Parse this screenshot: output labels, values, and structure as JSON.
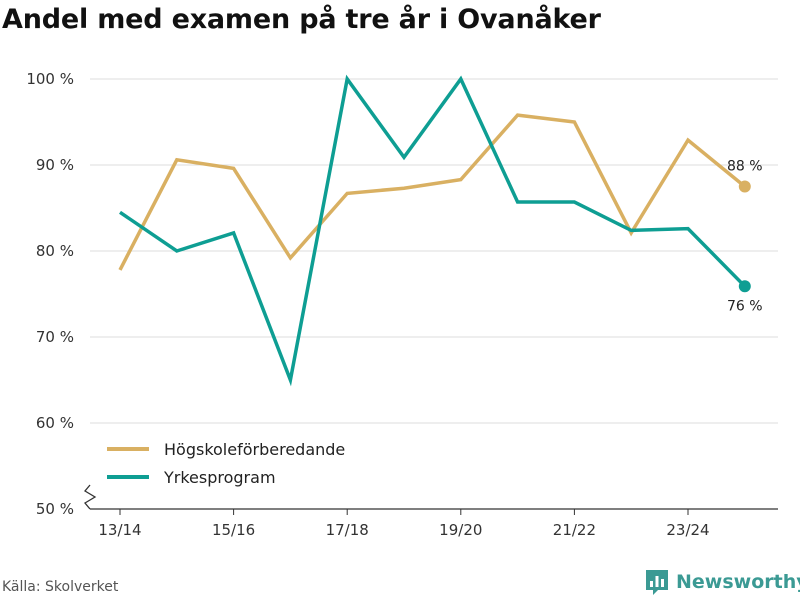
{
  "header": {
    "title": "Andel med examen på tre år i Ovanåker"
  },
  "footer": {
    "source": "Källa: Skolverket",
    "brand": "Newsworthy"
  },
  "colors": {
    "hogskole": "#d9b062",
    "yrkes": "#0e9e93",
    "grid": "#dddddd",
    "axis": "#333333"
  },
  "chart_data": {
    "type": "line",
    "x": [
      "13/14",
      "14/15",
      "15/16",
      "16/17",
      "17/18",
      "18/19",
      "19/20",
      "20/21",
      "21/22",
      "22/23",
      "23/24",
      "24/25"
    ],
    "x_tick_labels": [
      "13/14",
      "15/16",
      "17/18",
      "19/20",
      "21/22",
      "23/24"
    ],
    "y_ticks": [
      50,
      60,
      70,
      80,
      90,
      100
    ],
    "y_tick_labels": [
      "50 %",
      "60 %",
      "70 %",
      "80 %",
      "90 %",
      "100 %"
    ],
    "ylim": [
      50,
      100
    ],
    "y_axis_break": true,
    "grid": true,
    "legend_position": "bottom-left",
    "series": [
      {
        "name": "Högskoleförberedande",
        "color": "#d9b062",
        "values": [
          77.8,
          90.6,
          89.6,
          79.2,
          86.7,
          87.3,
          88.3,
          95.8,
          95.0,
          82.1,
          92.9,
          87.5
        ],
        "end_label": "88 %"
      },
      {
        "name": "Yrkesprogram",
        "color": "#0e9e93",
        "values": [
          84.5,
          80.0,
          82.1,
          65.0,
          100.0,
          90.9,
          100.0,
          85.7,
          85.7,
          82.4,
          82.6,
          75.9
        ],
        "end_label": "76 %"
      }
    ]
  }
}
